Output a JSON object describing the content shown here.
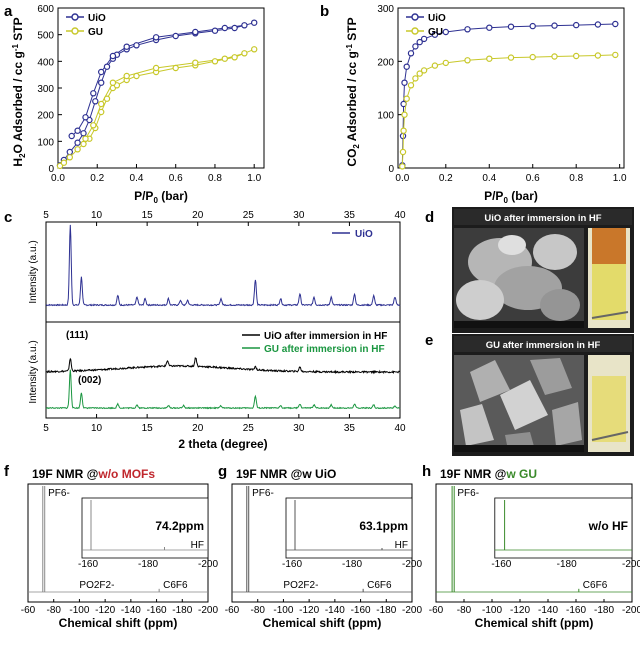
{
  "panels": {
    "a": {
      "letter": "a"
    },
    "b": {
      "letter": "b"
    },
    "c": {
      "letter": "c"
    },
    "d": {
      "letter": "d",
      "title": "UiO after immersion in HF"
    },
    "e": {
      "letter": "e",
      "title": "GU after immersion in HF"
    },
    "f": {
      "letter": "f",
      "title_prefix": "19F NMR @",
      "title_highlight": "w/o MOFs",
      "inset_value": "74.2ppm",
      "peak_labels": [
        "PF6-",
        "PO2F2-",
        "C6F6",
        "HF"
      ]
    },
    "g": {
      "letter": "g",
      "title_prefix": "19F NMR @w UiO",
      "inset_value": "63.1ppm",
      "peak_labels": [
        "PF6-",
        "PO2F2-",
        "C6F6",
        "HF"
      ]
    },
    "h": {
      "letter": "h",
      "title_prefix": "19F NMR @",
      "title_highlight": "w GU",
      "inset_value": "w/o HF",
      "peak_labels": [
        "PF6-",
        "C6F6"
      ]
    }
  },
  "colors": {
    "uio": "#2e3192",
    "gu": "#c8c82a",
    "gu_line": "#1a9640",
    "nmr_red": "#c0272d",
    "nmr_green": "#3a8a2a"
  },
  "chart_data": [
    {
      "id": "a",
      "type": "scatter",
      "xlabel": "P/P0 (bar)",
      "ylabel": "H2O Adsorbed / cc g-1 STP",
      "xlim": [
        0,
        1.05
      ],
      "ylim": [
        0,
        600
      ],
      "xticks": [
        0.0,
        0.2,
        0.4,
        0.6,
        0.8,
        1.0
      ],
      "yticks": [
        0,
        100,
        200,
        300,
        400,
        500,
        600
      ],
      "series": [
        {
          "name": "UiO",
          "x": [
            0.01,
            0.03,
            0.06,
            0.1,
            0.13,
            0.16,
            0.19,
            0.22,
            0.25,
            0.28,
            0.3,
            0.35,
            0.4,
            0.5,
            0.6,
            0.7,
            0.8,
            0.9,
            1.0,
            0.95,
            0.85,
            0.7,
            0.5,
            0.35,
            0.28,
            0.22,
            0.18,
            0.14,
            0.1,
            0.07
          ],
          "y": [
            10,
            30,
            60,
            95,
            130,
            180,
            250,
            320,
            380,
            410,
            425,
            445,
            460,
            480,
            495,
            505,
            515,
            525,
            545,
            535,
            525,
            510,
            490,
            455,
            420,
            360,
            280,
            190,
            140,
            120
          ]
        },
        {
          "name": "GU",
          "x": [
            0.01,
            0.03,
            0.06,
            0.1,
            0.13,
            0.16,
            0.19,
            0.22,
            0.25,
            0.28,
            0.3,
            0.35,
            0.4,
            0.5,
            0.6,
            0.7,
            0.8,
            0.9,
            1.0,
            0.95,
            0.85,
            0.7,
            0.5,
            0.35,
            0.28,
            0.22,
            0.18,
            0.14
          ],
          "y": [
            8,
            20,
            40,
            70,
            90,
            110,
            150,
            210,
            260,
            300,
            310,
            330,
            345,
            360,
            375,
            385,
            400,
            415,
            445,
            430,
            410,
            395,
            375,
            345,
            320,
            240,
            160,
            110
          ]
        }
      ]
    },
    {
      "id": "b",
      "type": "scatter",
      "xlabel": "P/P0 (bar)",
      "ylabel": "CO2 Adsorbed / cc g-1 STP",
      "xlim": [
        -0.02,
        1.02
      ],
      "ylim": [
        0,
        300
      ],
      "xticks": [
        0.0,
        0.2,
        0.4,
        0.6,
        0.8,
        1.0
      ],
      "yticks": [
        0,
        100,
        200,
        300
      ],
      "series": [
        {
          "name": "UiO",
          "x": [
            0.0,
            0.003,
            0.006,
            0.01,
            0.02,
            0.04,
            0.06,
            0.08,
            0.1,
            0.15,
            0.2,
            0.3,
            0.4,
            0.5,
            0.6,
            0.7,
            0.8,
            0.9,
            0.98
          ],
          "y": [
            5,
            60,
            120,
            160,
            190,
            215,
            228,
            236,
            242,
            250,
            255,
            260,
            263,
            265,
            266,
            267,
            268,
            269,
            270
          ]
        },
        {
          "name": "GU",
          "x": [
            0.0,
            0.003,
            0.006,
            0.01,
            0.02,
            0.04,
            0.06,
            0.08,
            0.1,
            0.15,
            0.2,
            0.3,
            0.4,
            0.5,
            0.6,
            0.7,
            0.8,
            0.9,
            0.98
          ],
          "y": [
            3,
            30,
            70,
            100,
            130,
            155,
            168,
            177,
            183,
            192,
            197,
            202,
            205,
            207,
            208,
            209,
            210,
            211,
            212
          ]
        }
      ]
    },
    {
      "id": "c",
      "type": "line",
      "xlabel": "2 theta (degree)",
      "ylabel": "Intensity (a.u.)",
      "xlim": [
        5,
        40
      ],
      "xticks": [
        5,
        10,
        15,
        20,
        25,
        30,
        35,
        40
      ],
      "peak_annotations": [
        "(111)",
        "(002)"
      ],
      "series": [
        {
          "name": "UiO",
          "peaks": [
            [
              7.4,
              1.0
            ],
            [
              8.5,
              0.35
            ],
            [
              12.1,
              0.12
            ],
            [
              14.0,
              0.1
            ],
            [
              14.8,
              0.08
            ],
            [
              17.1,
              0.08
            ],
            [
              18.3,
              0.06
            ],
            [
              19.0,
              0.06
            ],
            [
              22.3,
              0.08
            ],
            [
              25.7,
              0.32
            ],
            [
              28.2,
              0.08
            ],
            [
              30.1,
              0.14
            ],
            [
              31.5,
              0.1
            ],
            [
              33.2,
              0.1
            ],
            [
              35.5,
              0.14
            ],
            [
              37.4,
              0.12
            ],
            [
              39.5,
              0.1
            ]
          ]
        },
        {
          "name": "UiO after immersion in HF",
          "peaks": [
            [
              7.4,
              0.28
            ],
            [
              17.0,
              0.12
            ],
            [
              19.8,
              0.2
            ],
            [
              25.7,
              0.07
            ],
            [
              30.1,
              0.1
            ]
          ]
        },
        {
          "name": "GU after immersion in HF",
          "peaks": [
            [
              7.4,
              0.95
            ],
            [
              8.5,
              0.38
            ],
            [
              12.1,
              0.1
            ],
            [
              14.0,
              0.08
            ],
            [
              17.1,
              0.06
            ],
            [
              18.6,
              0.06
            ],
            [
              22.3,
              0.06
            ],
            [
              25.7,
              0.3
            ],
            [
              28.2,
              0.06
            ],
            [
              30.1,
              0.1
            ],
            [
              31.5,
              0.08
            ],
            [
              33.2,
              0.08
            ],
            [
              35.5,
              0.1
            ],
            [
              37.4,
              0.08
            ],
            [
              39.5,
              0.06
            ]
          ]
        }
      ]
    },
    {
      "id": "f",
      "type": "line",
      "xlabel": "Chemical shift (ppm)",
      "xlim": [
        -60,
        -200
      ],
      "xticks": [
        -60,
        -80,
        -100,
        -120,
        -140,
        -160,
        -180,
        -200
      ],
      "inset_xticks": [
        -160,
        -180,
        -200
      ],
      "peaks": [
        [
          -71.5,
          1.0
        ],
        [
          -73.0,
          1.0
        ],
        [
          -162.0,
          0.03
        ]
      ],
      "inset_peaks": [
        [
          -161.0,
          1.0
        ],
        [
          -185.5,
          0.06
        ]
      ]
    },
    {
      "id": "g",
      "type": "line",
      "xlabel": "Chemical shift (ppm)",
      "xlim": [
        -60,
        -200
      ],
      "xticks": [
        -60,
        -80,
        -100,
        -120,
        -140,
        -160,
        -180,
        -200
      ],
      "inset_xticks": [
        -160,
        -180,
        -200
      ],
      "peaks": [
        [
          -71.5,
          1.0
        ],
        [
          -73.0,
          1.0
        ],
        [
          -162.0,
          0.03
        ]
      ],
      "inset_peaks": [
        [
          -161.0,
          1.0
        ],
        [
          -190.0,
          0.04
        ]
      ]
    },
    {
      "id": "h",
      "type": "line",
      "xlabel": "Chemical shift (ppm)",
      "xlim": [
        -60,
        -200
      ],
      "xticks": [
        -60,
        -80,
        -100,
        -120,
        -140,
        -160,
        -180,
        -200
      ],
      "inset_xticks": [
        -160,
        -180,
        -200
      ],
      "peaks": [
        [
          -71.5,
          1.0
        ],
        [
          -73.0,
          1.0
        ],
        [
          -162.0,
          0.03
        ]
      ],
      "inset_peaks": [
        [
          -161.0,
          1.0
        ]
      ]
    }
  ]
}
